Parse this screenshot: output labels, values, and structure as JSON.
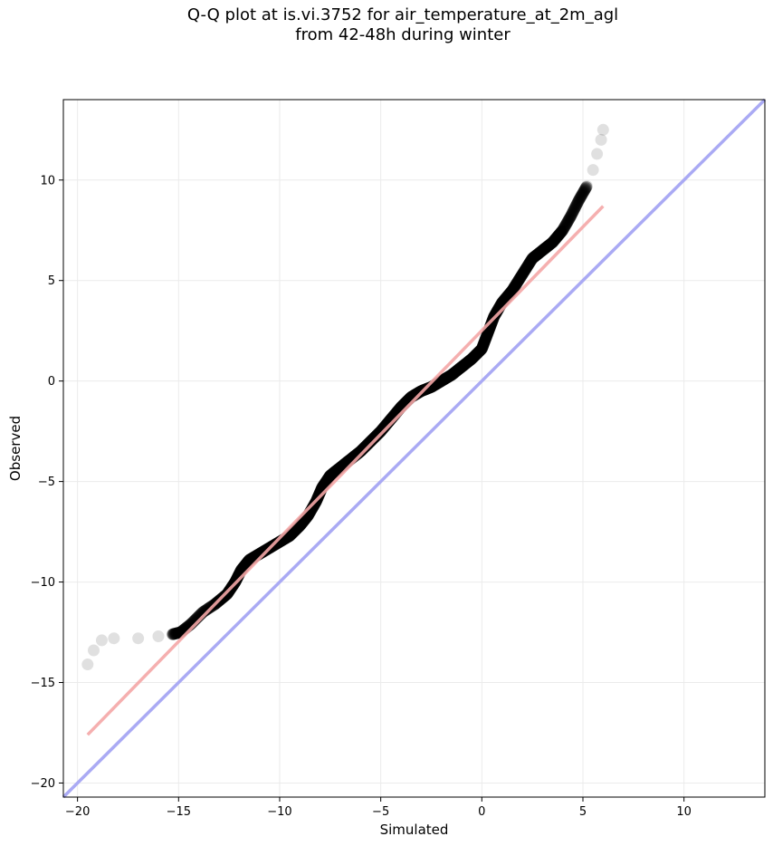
{
  "title_line1": "Q-Q plot at is.vi.3752 for air_temperature_at_2m_agl",
  "title_line2": "from 42-48h during winter",
  "chart_data": {
    "type": "scatter",
    "title": "Q-Q plot at is.vi.3752 for air_temperature_at_2m_agl\nfrom 42-48h during winter",
    "xlabel": "Simulated",
    "ylabel": "Observed",
    "xlim": [
      -20.7,
      14.0
    ],
    "ylim": [
      -20.7,
      14.0
    ],
    "grid": true,
    "x_ticks": [
      -20,
      -15,
      -10,
      -5,
      0,
      5,
      10
    ],
    "y_ticks": [
      -20,
      -15,
      -10,
      -5,
      0,
      5,
      10
    ],
    "x_tick_labels": [
      "−20",
      "−15",
      "−10",
      "−5",
      "0",
      "5",
      "10"
    ],
    "y_tick_labels": [
      "−20",
      "−15",
      "−10",
      "−5",
      "0",
      "5",
      "10"
    ],
    "colors": {
      "points": "#000000",
      "fit_line": "#f4a6a6",
      "identity_line": "#aaaaf4",
      "grid": "#ebebeb"
    },
    "quantile_curve": [
      [
        -19.5,
        -14.1
      ],
      [
        -19.2,
        -13.4
      ],
      [
        -18.8,
        -12.9
      ],
      [
        -18.2,
        -12.8
      ],
      [
        -17.0,
        -12.8
      ],
      [
        -16.0,
        -12.7
      ],
      [
        -15.3,
        -12.6
      ],
      [
        -14.9,
        -12.5
      ],
      [
        -14.4,
        -12.1
      ],
      [
        -13.8,
        -11.5
      ],
      [
        -13.2,
        -11.1
      ],
      [
        -12.6,
        -10.6
      ],
      [
        -12.2,
        -10.0
      ],
      [
        -11.9,
        -9.4
      ],
      [
        -11.5,
        -8.9
      ],
      [
        -11.0,
        -8.6
      ],
      [
        -10.5,
        -8.3
      ],
      [
        -10.0,
        -8.0
      ],
      [
        -9.5,
        -7.7
      ],
      [
        -9.0,
        -7.2
      ],
      [
        -8.6,
        -6.7
      ],
      [
        -8.2,
        -6.0
      ],
      [
        -7.9,
        -5.3
      ],
      [
        -7.5,
        -4.7
      ],
      [
        -7.0,
        -4.3
      ],
      [
        -6.5,
        -3.9
      ],
      [
        -6.0,
        -3.5
      ],
      [
        -5.5,
        -3.0
      ],
      [
        -5.0,
        -2.5
      ],
      [
        -4.5,
        -1.9
      ],
      [
        -4.0,
        -1.3
      ],
      [
        -3.5,
        -0.8
      ],
      [
        -3.0,
        -0.5
      ],
      [
        -2.5,
        -0.3
      ],
      [
        -2.0,
        0.0
      ],
      [
        -1.5,
        0.3
      ],
      [
        -1.0,
        0.7
      ],
      [
        -0.5,
        1.1
      ],
      [
        0.0,
        1.6
      ],
      [
        0.3,
        2.4
      ],
      [
        0.6,
        3.2
      ],
      [
        1.0,
        3.9
      ],
      [
        1.5,
        4.5
      ],
      [
        2.0,
        5.3
      ],
      [
        2.5,
        6.1
      ],
      [
        3.0,
        6.5
      ],
      [
        3.5,
        6.9
      ],
      [
        4.0,
        7.5
      ],
      [
        4.4,
        8.2
      ],
      [
        4.8,
        9.0
      ],
      [
        5.2,
        9.7
      ],
      [
        5.5,
        10.5
      ],
      [
        5.7,
        11.3
      ],
      [
        5.9,
        12.0
      ],
      [
        6.0,
        12.5
      ]
    ],
    "fit_line": {
      "x": [
        -19.5,
        6.0
      ],
      "y": [
        -17.6,
        8.7
      ]
    },
    "identity_line": {
      "x": [
        -20.7,
        14.0
      ],
      "y": [
        -20.7,
        14.0
      ]
    }
  }
}
